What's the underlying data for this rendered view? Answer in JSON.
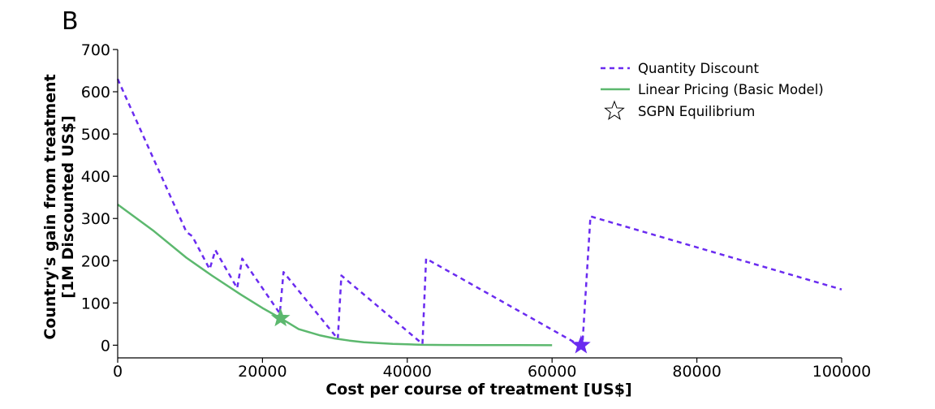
{
  "panel_label": "B",
  "colors": {
    "quantity_discount": "#6a2bf0",
    "linear_pricing": "#5cb86e",
    "axis": "#000000"
  },
  "chart_data": {
    "type": "line",
    "title": "",
    "xlabel": "Cost per course of treatment [US$]",
    "ylabel_line1": "Country's gain from treatment",
    "ylabel_line2": "[1M Discounted US$]",
    "xlim": [
      0,
      100000
    ],
    "ylim": [
      -30,
      700
    ],
    "xticks": [
      0,
      20000,
      40000,
      60000,
      80000,
      100000
    ],
    "yticks": [
      0,
      100,
      200,
      300,
      400,
      500,
      600,
      700
    ],
    "xtick_labels": [
      "0",
      "20000",
      "40000",
      "60000",
      "80000",
      "100000"
    ],
    "ytick_labels": [
      "0",
      "100",
      "200",
      "300",
      "400",
      "500",
      "600",
      "700"
    ],
    "legend_position": "top-right",
    "legend": [
      "Quantity Discount",
      "Linear Pricing (Basic Model)",
      "SGPN Equilibrium"
    ],
    "series": [
      {
        "name": "Quantity Discount",
        "style": "dashed",
        "x": [
          0,
          9500,
          10300,
          12700,
          13500,
          16500,
          17200,
          22400,
          22900,
          30400,
          30900,
          42100,
          42600,
          63800,
          64200,
          65300,
          100000
        ],
        "y": [
          630,
          268,
          258,
          180,
          225,
          135,
          205,
          75,
          173,
          15,
          165,
          3,
          205,
          0,
          5,
          305,
          132
        ]
      },
      {
        "name": "Linear Pricing (Basic Model)",
        "style": "solid",
        "x": [
          0,
          5000,
          9500,
          13000,
          17000,
          20000,
          22500,
          25000,
          28000,
          30000,
          32000,
          34000,
          36000,
          38000,
          40000,
          42000,
          45000,
          50000,
          55000,
          60000
        ],
        "y": [
          333,
          270,
          207,
          165,
          120,
          88,
          64,
          38,
          23,
          16,
          11,
          7,
          5,
          3,
          2,
          1,
          0.5,
          0.3,
          0.1,
          0
        ]
      }
    ],
    "markers": [
      {
        "series": "Linear Pricing (Basic Model)",
        "label": "SGPN Equilibrium",
        "x": 22500,
        "y": 64
      },
      {
        "series": "Quantity Discount",
        "label": "SGPN Equilibrium",
        "x": 64000,
        "y": 0
      }
    ]
  }
}
